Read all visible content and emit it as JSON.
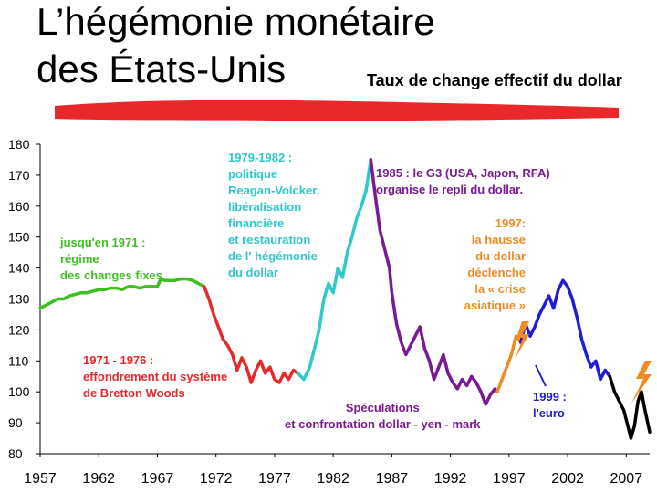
{
  "page": {
    "title_line1": "L’hégémonie monétaire",
    "title_line2": "des États-Unis",
    "subtitle": "Taux de change effectif du dollar"
  },
  "colors": {
    "brush": "#e8282b",
    "axis": "#000000"
  },
  "chart_data": {
    "type": "line",
    "title": "Taux de change effectif du dollar",
    "xlabel": "",
    "ylabel": "",
    "xlim": [
      1957,
      2009
    ],
    "ylim": [
      80,
      180
    ],
    "xticks": [
      1957,
      1962,
      1967,
      1972,
      1977,
      1982,
      1987,
      1992,
      1997,
      2002,
      2007
    ],
    "yticks": [
      80,
      90,
      100,
      110,
      120,
      130,
      140,
      150,
      160,
      170,
      180
    ],
    "grid": false,
    "legend": "none",
    "series": [
      {
        "color": "#3dbf1f",
        "points": [
          [
            1957,
            127
          ],
          [
            1957.5,
            128
          ],
          [
            1958,
            129
          ],
          [
            1958.5,
            130
          ],
          [
            1959,
            130
          ],
          [
            1959.5,
            131
          ],
          [
            1960,
            131.5
          ],
          [
            1960.5,
            132
          ],
          [
            1961,
            132
          ],
          [
            1961.5,
            132.5
          ],
          [
            1962,
            133
          ],
          [
            1962.5,
            133
          ],
          [
            1963,
            133.5
          ],
          [
            1963.5,
            133.5
          ],
          [
            1964,
            133
          ],
          [
            1964.5,
            134
          ],
          [
            1965,
            134
          ],
          [
            1965.5,
            133.5
          ],
          [
            1966,
            134
          ],
          [
            1966.5,
            134
          ],
          [
            1967,
            134
          ],
          [
            1967.3,
            136.5
          ],
          [
            1967.6,
            136
          ],
          [
            1968,
            136
          ],
          [
            1968.5,
            136
          ],
          [
            1969,
            136.5
          ],
          [
            1969.5,
            136.5
          ],
          [
            1970,
            136
          ],
          [
            1970.5,
            135
          ],
          [
            1971,
            134
          ]
        ]
      },
      {
        "color": "#e8282b",
        "points": [
          [
            1971,
            134
          ],
          [
            1971.4,
            130
          ],
          [
            1971.8,
            125
          ],
          [
            1972.2,
            121
          ],
          [
            1972.6,
            117
          ],
          [
            1973,
            115
          ],
          [
            1973.4,
            112
          ],
          [
            1973.8,
            107
          ],
          [
            1974.2,
            111
          ],
          [
            1974.6,
            108
          ],
          [
            1975,
            103
          ],
          [
            1975.4,
            107
          ],
          [
            1975.8,
            110
          ],
          [
            1976.2,
            106
          ],
          [
            1976.6,
            108
          ],
          [
            1977,
            104
          ],
          [
            1977.4,
            103
          ],
          [
            1977.8,
            106
          ],
          [
            1978.2,
            104
          ],
          [
            1978.6,
            107
          ],
          [
            1979,
            106
          ]
        ]
      },
      {
        "color": "#2fc9c9",
        "points": [
          [
            1979,
            106
          ],
          [
            1979.5,
            104
          ],
          [
            1980,
            108
          ],
          [
            1980.4,
            114
          ],
          [
            1980.8,
            120
          ],
          [
            1981.2,
            130
          ],
          [
            1981.6,
            135
          ],
          [
            1982,
            132
          ],
          [
            1982.4,
            140
          ],
          [
            1982.8,
            137
          ],
          [
            1983.2,
            145
          ],
          [
            1983.6,
            150
          ],
          [
            1984,
            156
          ],
          [
            1984.4,
            160
          ],
          [
            1984.8,
            165
          ],
          [
            1985,
            170
          ],
          [
            1985.2,
            175
          ]
        ]
      },
      {
        "color": "#7a1a92",
        "points": [
          [
            1985.2,
            175
          ],
          [
            1985.6,
            163
          ],
          [
            1986,
            152
          ],
          [
            1986.4,
            146
          ],
          [
            1986.8,
            140
          ],
          [
            1987,
            132
          ],
          [
            1987.4,
            122
          ],
          [
            1987.8,
            116
          ],
          [
            1988.2,
            112
          ],
          [
            1988.6,
            115
          ],
          [
            1989,
            118
          ],
          [
            1989.4,
            121
          ],
          [
            1989.8,
            114
          ],
          [
            1990.2,
            110
          ],
          [
            1990.6,
            104
          ],
          [
            1991,
            108
          ],
          [
            1991.4,
            112
          ],
          [
            1991.8,
            106
          ],
          [
            1992.2,
            103
          ],
          [
            1992.6,
            101
          ],
          [
            1993,
            104
          ],
          [
            1993.4,
            102
          ],
          [
            1993.8,
            105
          ],
          [
            1994.2,
            103
          ],
          [
            1994.6,
            100
          ],
          [
            1995,
            96
          ],
          [
            1995.4,
            99
          ],
          [
            1995.8,
            101
          ],
          [
            1996,
            100
          ]
        ]
      },
      {
        "color": "#f28a22",
        "points": [
          [
            1996,
            100
          ],
          [
            1996.4,
            104
          ],
          [
            1996.8,
            108
          ],
          [
            1997.2,
            112
          ],
          [
            1997.6,
            118
          ],
          [
            1998,
            116
          ]
        ]
      },
      {
        "color": "#1e1ed8",
        "points": [
          [
            1998,
            116
          ],
          [
            1998.4,
            122
          ],
          [
            1998.8,
            118
          ],
          [
            1999.2,
            121
          ],
          [
            1999.6,
            125
          ],
          [
            2000,
            128
          ],
          [
            2000.4,
            131
          ],
          [
            2000.8,
            127
          ],
          [
            2001.2,
            133
          ],
          [
            2001.6,
            136
          ],
          [
            2002,
            134
          ],
          [
            2002.4,
            130
          ],
          [
            2002.8,
            124
          ],
          [
            2003.2,
            117
          ],
          [
            2003.6,
            112
          ],
          [
            2004,
            108
          ],
          [
            2004.4,
            110
          ],
          [
            2004.8,
            104
          ],
          [
            2005.2,
            107
          ],
          [
            2005.6,
            105
          ]
        ]
      },
      {
        "color": "#000000",
        "points": [
          [
            2005.6,
            105
          ],
          [
            2006,
            100
          ],
          [
            2006.4,
            97
          ],
          [
            2006.8,
            94
          ],
          [
            2007.2,
            88
          ],
          [
            2007.4,
            85
          ],
          [
            2007.7,
            89
          ],
          [
            2008,
            97
          ],
          [
            2008.3,
            100
          ],
          [
            2008.6,
            94
          ],
          [
            2009,
            87
          ]
        ]
      }
    ],
    "annotations": [
      {
        "id": "pre1971",
        "text": "jusqu'en 1971 :\nrégime\ndes changes fixes",
        "color": "#3dbf1f"
      },
      {
        "id": "bretton",
        "text": "1971 - 1976 :\neffondrement du système\nde Bretton Woods",
        "color": "#e8282b"
      },
      {
        "id": "volcker",
        "text": "1979-1982 :\npolitique\nReagan-Volcker,\nlibéralisation\nfinancière\net restauration\nde l' hégémonie\ndu dollar",
        "color": "#2fc9c9"
      },
      {
        "id": "g3",
        "text": "1985 : le G3 (USA, Japon, RFA)\norganise le repli du dollar.",
        "color": "#7a1a92"
      },
      {
        "id": "speculation",
        "text": "Spéculations\net confrontation dollar - yen - mark",
        "color": "#7a1a92"
      },
      {
        "id": "asia",
        "text": "1997:\nla hausse\ndu dollar\ndéclenche\nla « crise\nasiatique »",
        "color": "#f28a22"
      },
      {
        "id": "euro",
        "text": "1999 :\nl'euro",
        "color": "#1e1ed8"
      }
    ]
  }
}
